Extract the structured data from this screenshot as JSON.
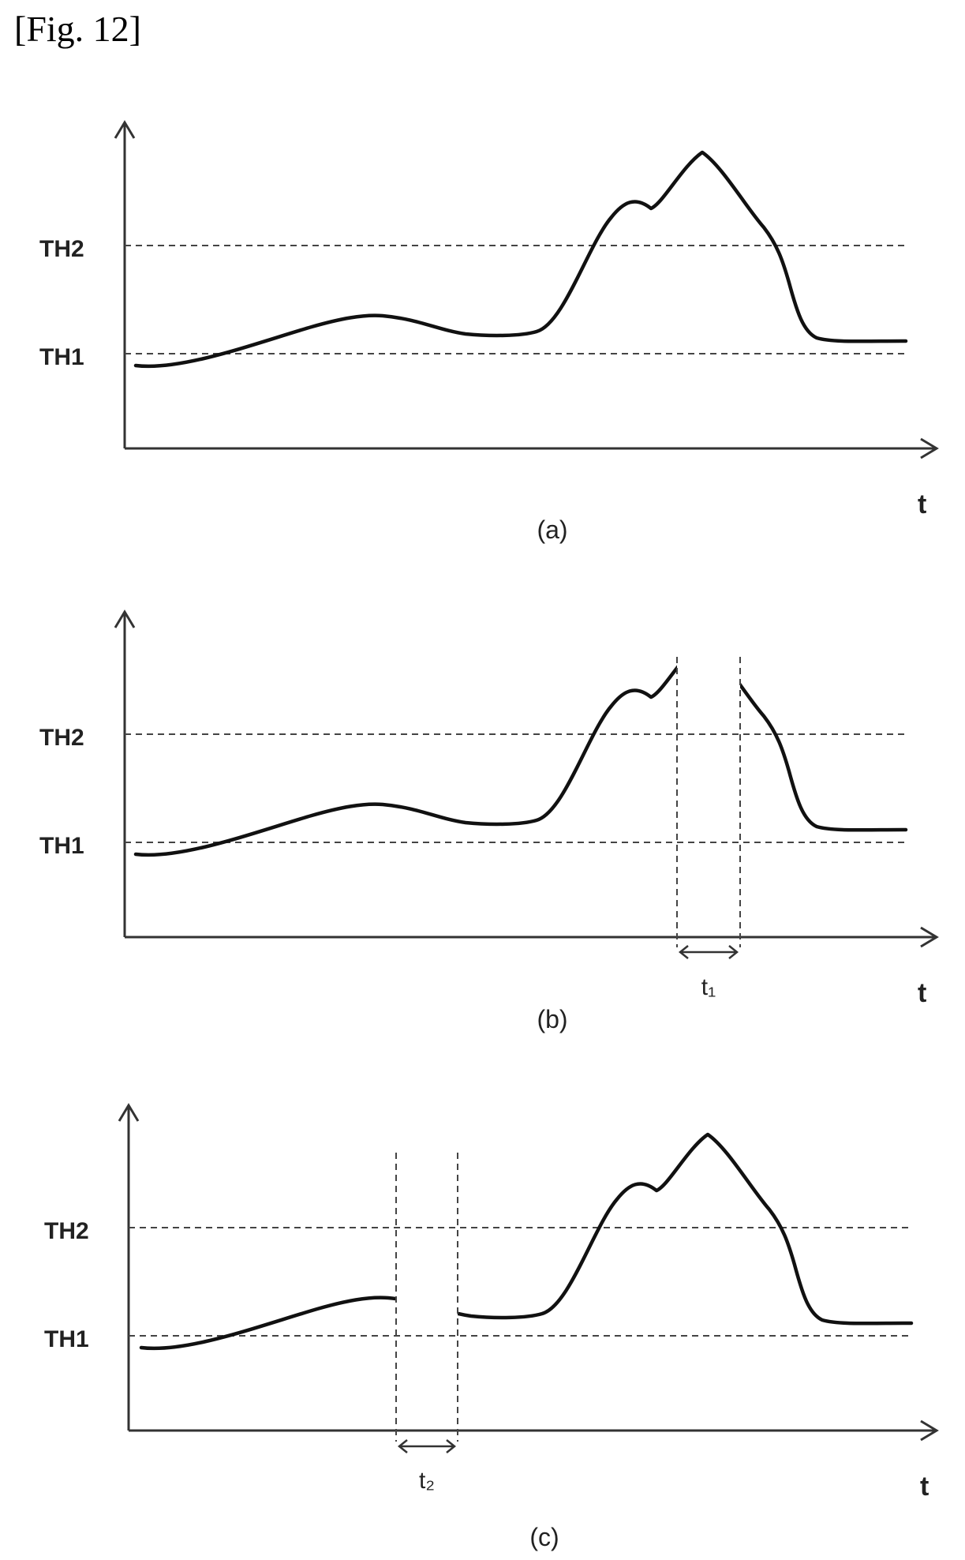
{
  "figure_label": "[Fig. 12]",
  "panels": [
    {
      "caption": "(a)",
      "time_axis_label": "t",
      "threshold_high": "TH2",
      "threshold_low": "TH1"
    },
    {
      "caption": "(b)",
      "time_axis_label": "t",
      "threshold_high": "TH2",
      "threshold_low": "TH1",
      "gap_label": "t₁"
    },
    {
      "caption": "(c)",
      "time_axis_label": "t",
      "threshold_high": "TH2",
      "threshold_low": "TH1",
      "gap_label": "t₂"
    }
  ]
}
